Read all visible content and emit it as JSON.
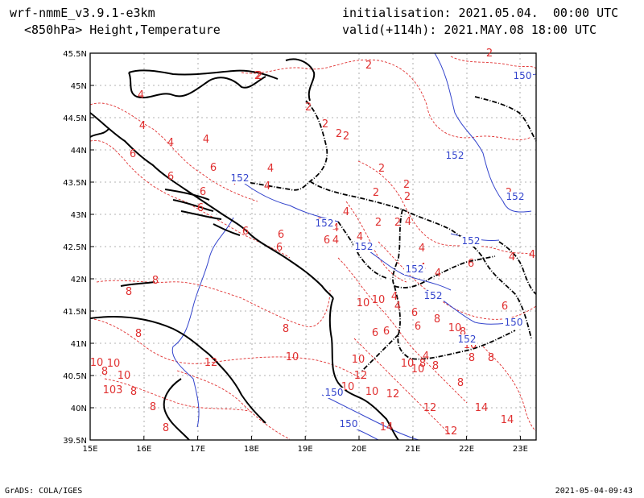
{
  "header": {
    "model": "wrf-nmmE_v3.9.1-e3km",
    "field": "<850hPa> Height,Temperature",
    "init": "initialisation: 2021.05.04.  00:00 UTC",
    "valid": "valid(+114h): 2021.MAY.08 18:00 UTC"
  },
  "footer": {
    "left": "GrADS: COLA/IGES",
    "right": "2021-05-04-09:43"
  },
  "map": {
    "lat_labels": [
      "45.5N",
      "45N",
      "44.5N",
      "44N",
      "43.5N",
      "43N",
      "42.5N",
      "42N",
      "41.5N",
      "41N",
      "40.5N",
      "40N",
      "39.5N"
    ],
    "lon_labels": [
      "15E",
      "16E",
      "17E",
      "18E",
      "19E",
      "20E",
      "21E",
      "22E",
      "23E"
    ],
    "colors": {
      "temperature": "#e03030",
      "height": "#3344cc",
      "coast": "#000000",
      "grid": "#999999"
    },
    "temperature_labels": [
      "2",
      "2",
      "2",
      "2",
      "2",
      "2",
      "2",
      "2",
      "2",
      "2",
      "2",
      "2",
      "2",
      "2",
      "2",
      "4",
      "4",
      "4",
      "4",
      "4",
      "4",
      "4",
      "4",
      "4",
      "4",
      "4",
      "4",
      "4",
      "4",
      "4",
      "4",
      "4",
      "4",
      "4",
      "4",
      "6",
      "6",
      "6",
      "6",
      "6",
      "6",
      "6",
      "6",
      "6",
      "6",
      "6",
      "6",
      "6",
      "6",
      "6",
      "6",
      "8",
      "8",
      "8",
      "8",
      "8",
      "8",
      "8",
      "8",
      "8",
      "8",
      "8",
      "8",
      "8",
      "8",
      "8",
      "10",
      "10",
      "10",
      "10",
      "10",
      "10",
      "10",
      "10",
      "10",
      "10",
      "10",
      "10",
      "10",
      "12",
      "12",
      "12",
      "12",
      "12",
      "14",
      "14",
      "14",
      "103"
    ],
    "height_labels": [
      "150",
      "150",
      "150",
      "150",
      "152",
      "152",
      "152",
      "152",
      "152",
      "152",
      "152",
      "152",
      "152"
    ]
  }
}
